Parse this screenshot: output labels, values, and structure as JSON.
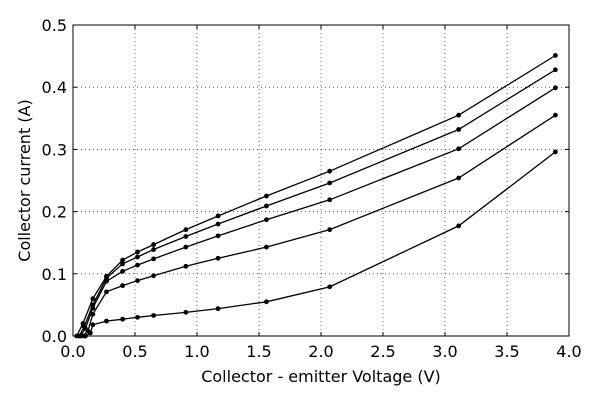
{
  "chart_data": {
    "type": "line",
    "title": "",
    "xlabel": "Collector - emitter Voltage (V)",
    "ylabel": "Collector current (A)",
    "xlim": [
      0.0,
      4.0
    ],
    "ylim": [
      0.0,
      0.5
    ],
    "xticks": [
      "0.0",
      "0.5",
      "1.0",
      "1.5",
      "2.0",
      "2.5",
      "3.0",
      "3.5",
      "4.0"
    ],
    "yticks": [
      "0.0",
      "0.1",
      "0.2",
      "0.3",
      "0.4",
      "0.5"
    ],
    "grid": true,
    "legend": "none",
    "series": [
      {
        "x": [
          0.03,
          0.08,
          0.16,
          0.27,
          0.4,
          0.52,
          0.65,
          0.91,
          1.17,
          1.56,
          2.07,
          3.11,
          3.89
        ],
        "y": [
          0.0,
          0.02,
          0.06,
          0.096,
          0.122,
          0.135,
          0.147,
          0.171,
          0.193,
          0.225,
          0.265,
          0.355,
          0.451
        ]
      },
      {
        "x": [
          0.05,
          0.09,
          0.16,
          0.27,
          0.4,
          0.52,
          0.65,
          0.91,
          1.17,
          1.56,
          2.07,
          3.11,
          3.89
        ],
        "y": [
          0.0,
          0.015,
          0.05,
          0.093,
          0.116,
          0.127,
          0.139,
          0.16,
          0.18,
          0.209,
          0.246,
          0.332,
          0.428
        ]
      },
      {
        "x": [
          0.06,
          0.1,
          0.16,
          0.27,
          0.4,
          0.52,
          0.65,
          0.91,
          1.17,
          1.56,
          2.07,
          3.11,
          3.89
        ],
        "y": [
          0.0,
          0.012,
          0.045,
          0.088,
          0.104,
          0.114,
          0.124,
          0.143,
          0.161,
          0.187,
          0.219,
          0.301,
          0.399
        ]
      },
      {
        "x": [
          0.08,
          0.12,
          0.16,
          0.27,
          0.4,
          0.52,
          0.65,
          0.91,
          1.17,
          1.56,
          2.07,
          3.11,
          3.89
        ],
        "y": [
          0.0,
          0.008,
          0.035,
          0.071,
          0.081,
          0.089,
          0.097,
          0.112,
          0.125,
          0.143,
          0.171,
          0.254,
          0.355
        ]
      },
      {
        "x": [
          0.1,
          0.14,
          0.16,
          0.27,
          0.4,
          0.52,
          0.65,
          0.91,
          1.17,
          1.56,
          2.07,
          3.11,
          3.89
        ],
        "y": [
          0.0,
          0.005,
          0.018,
          0.024,
          0.027,
          0.03,
          0.033,
          0.038,
          0.044,
          0.055,
          0.079,
          0.177,
          0.296
        ]
      }
    ]
  }
}
